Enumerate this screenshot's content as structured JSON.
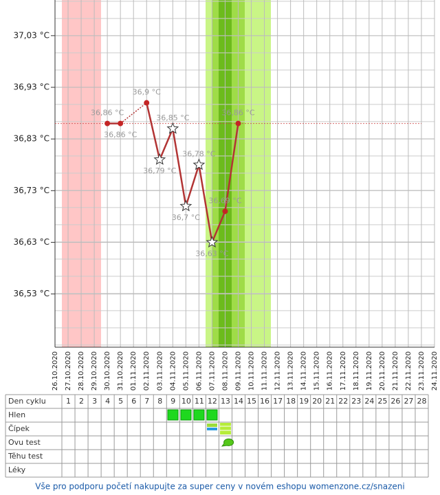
{
  "chart_data": {
    "type": "line",
    "categories": [
      "26.10.2020",
      "27.10.2020",
      "28.10.2020",
      "29.10.2020",
      "30.10.2020",
      "31.10.2020",
      "01.11.2020",
      "02.11.2020",
      "03.11.2020",
      "04.11.2020",
      "05.11.2020",
      "06.11.2020",
      "07.11.2020",
      "08.11.2020",
      "09.11.2020",
      "10.11.2020",
      "11.11.2020",
      "12.11.2020",
      "13.11.2020",
      "14.11.2020",
      "15.11.2020",
      "16.11.2020",
      "17.11.2020",
      "18.11.2020",
      "19.11.2020",
      "20.11.2020",
      "21.11.2020",
      "22.11.2020",
      "23.11.2020",
      "24.11.2020"
    ],
    "values": [
      null,
      null,
      null,
      null,
      36.86,
      36.86,
      null,
      36.9,
      36.79,
      36.85,
      36.7,
      36.78,
      36.63,
      36.69,
      36.86,
      null,
      null,
      null,
      null,
      null,
      null,
      null,
      null,
      null,
      null,
      null,
      null,
      null,
      null,
      null
    ],
    "value_labels": [
      null,
      null,
      null,
      null,
      "36,86 °C",
      "36,86 °C",
      null,
      "36,9 °C",
      "36,79 °C",
      "36,85 °C",
      "36,7 °C",
      "36,78 °C",
      "36,63 °C",
      "36,69 °C",
      "36,86 °C",
      null,
      null,
      null,
      null,
      null,
      null,
      null,
      null,
      null,
      null,
      null,
      null,
      null,
      null,
      null
    ],
    "markers": [
      null,
      null,
      null,
      null,
      "circle",
      "circle",
      null,
      "circle",
      "star",
      "star",
      "star",
      "star",
      "star",
      "circle",
      "circle",
      null,
      null,
      null,
      null,
      null,
      null,
      null,
      null,
      null,
      null,
      null,
      null,
      null,
      null,
      null
    ],
    "color": "#b23434",
    "point_color": "#c42424",
    "coverline": 36.86,
    "ylim": [
      36.427,
      37.099
    ],
    "yticks": [
      {
        "value": 37.03,
        "label": "37,03 °C"
      },
      {
        "value": 36.93,
        "label": "36,93 °C"
      },
      {
        "value": 36.83,
        "label": "36,83 °C"
      },
      {
        "value": 36.73,
        "label": "36,73 °C"
      },
      {
        "value": 36.63,
        "label": "36,63 °C"
      },
      {
        "value": 36.53,
        "label": "36,53 °C"
      }
    ],
    "grid": true
  },
  "table": {
    "row_labels": [
      "Den cyklu",
      "Hlen",
      "Čípek",
      "Ovu test",
      "Těhu test",
      "Léky"
    ],
    "days": [
      1,
      2,
      3,
      4,
      5,
      6,
      7,
      8,
      9,
      10,
      11,
      12,
      13,
      14,
      15,
      16,
      17,
      18,
      19,
      20,
      21,
      22,
      23,
      24,
      25,
      26,
      27,
      28
    ]
  },
  "footer": "Vše pro podporu početí nakupujte za super ceny v novém eshopu womenzone.cz/snazeni"
}
